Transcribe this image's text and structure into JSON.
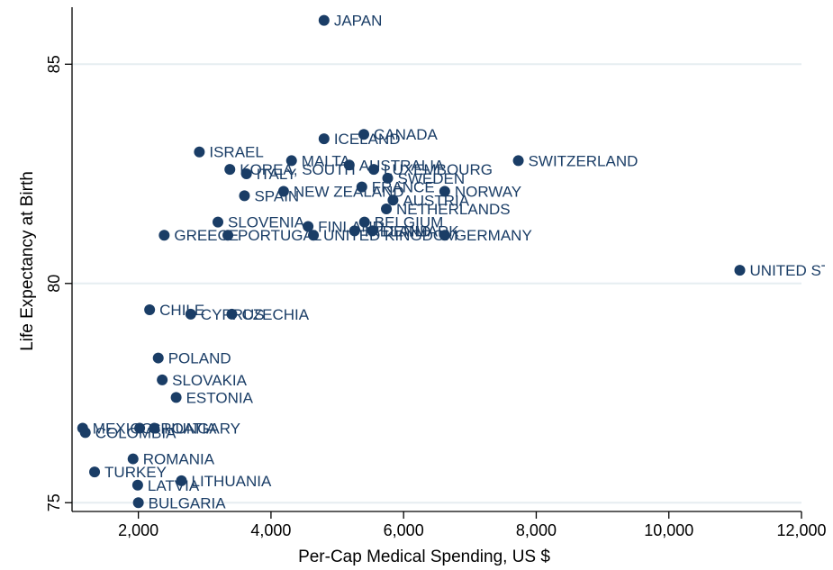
{
  "chart_data": {
    "type": "scatter",
    "title": "",
    "xlabel": "Per-Cap Medical Spending, US $",
    "ylabel": "Life Expectancy at Birth",
    "xlim": [
      1000,
      12000
    ],
    "ylim": [
      74.8,
      86.3
    ],
    "xticks": [
      2000,
      4000,
      6000,
      8000,
      10000,
      12000
    ],
    "xtick_labels": [
      "2,000",
      "4,000",
      "6,000",
      "8,000",
      "10,000",
      "12,000"
    ],
    "yticks": [
      75,
      80,
      85
    ],
    "ytick_labels": [
      "75",
      "80",
      "85"
    ],
    "grid": true,
    "legend": "none",
    "marker_color": "#1a3d66",
    "label_color": "#1a3d66",
    "grid_color": "#e6edf1",
    "points": [
      {
        "label": "JAPAN",
        "x": 4800,
        "y": 86.0
      },
      {
        "label": "CANADA",
        "x": 5400,
        "y": 83.4
      },
      {
        "label": "ICELAND",
        "x": 4800,
        "y": 83.3
      },
      {
        "label": "ISRAEL",
        "x": 2920,
        "y": 83.0
      },
      {
        "label": "SWITZERLAND",
        "x": 7730,
        "y": 82.8
      },
      {
        "label": "MALTA",
        "x": 4310,
        "y": 82.8
      },
      {
        "label": "AUSTRALIA",
        "x": 5180,
        "y": 82.7
      },
      {
        "label": "LUXEMBOURG",
        "x": 5550,
        "y": 82.6
      },
      {
        "label": "KOREA, SOUTH",
        "x": 3380,
        "y": 82.6
      },
      {
        "label": "ITALY",
        "x": 3630,
        "y": 82.5
      },
      {
        "label": "SWEDEN",
        "x": 5760,
        "y": 82.4
      },
      {
        "label": "FRANCE",
        "x": 5370,
        "y": 82.2
      },
      {
        "label": "NORWAY",
        "x": 6620,
        "y": 82.1
      },
      {
        "label": "NEW ZEALAND",
        "x": 4190,
        "y": 82.1
      },
      {
        "label": "SPAIN",
        "x": 3600,
        "y": 82.0
      },
      {
        "label": "AUSTRIA",
        "x": 5840,
        "y": 81.9
      },
      {
        "label": "NETHERLANDS",
        "x": 5740,
        "y": 81.7
      },
      {
        "label": "SLOVENIA",
        "x": 3200,
        "y": 81.4
      },
      {
        "label": "BELGIUM",
        "x": 5410,
        "y": 81.4
      },
      {
        "label": "FINLAND",
        "x": 4560,
        "y": 81.3
      },
      {
        "label": "DENMARK",
        "x": 5530,
        "y": 81.2
      },
      {
        "label": "IRELAND",
        "x": 5260,
        "y": 81.2
      },
      {
        "label": "GREECE",
        "x": 2390,
        "y": 81.1
      },
      {
        "label": "PORTUGAL",
        "x": 3350,
        "y": 81.1
      },
      {
        "label": "UNITED KINGDOM",
        "x": 4640,
        "y": 81.1
      },
      {
        "label": "GERMANY",
        "x": 6620,
        "y": 81.1
      },
      {
        "label": "UNITED STATES",
        "x": 11070,
        "y": 80.3
      },
      {
        "label": "CHILE",
        "x": 2170,
        "y": 79.4
      },
      {
        "label": "CYPRUS",
        "x": 2790,
        "y": 79.3
      },
      {
        "label": "CZECHIA",
        "x": 3410,
        "y": 79.3
      },
      {
        "label": "POLAND",
        "x": 2300,
        "y": 78.3
      },
      {
        "label": "SLOVAKIA",
        "x": 2360,
        "y": 77.8
      },
      {
        "label": "ESTONIA",
        "x": 2570,
        "y": 77.4
      },
      {
        "label": "MEXICO",
        "x": 1160,
        "y": 76.7
      },
      {
        "label": "CROATIA",
        "x": 2020,
        "y": 76.7
      },
      {
        "label": "HUNGARY",
        "x": 2240,
        "y": 76.7
      },
      {
        "label": "COLOMBIA",
        "x": 1200,
        "y": 76.6
      },
      {
        "label": "ROMANIA",
        "x": 1920,
        "y": 76.0
      },
      {
        "label": "TURKEY",
        "x": 1340,
        "y": 75.7
      },
      {
        "label": "LITHUANIA",
        "x": 2650,
        "y": 75.5
      },
      {
        "label": "LATVIA",
        "x": 1990,
        "y": 75.4
      },
      {
        "label": "BULGARIA",
        "x": 2000,
        "y": 75.0
      }
    ]
  }
}
